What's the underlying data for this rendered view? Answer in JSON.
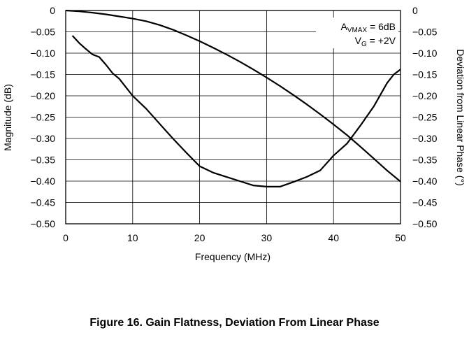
{
  "figure": {
    "caption": "Figure 16. Gain Flatness, Deviation From Linear Phase"
  },
  "chart_data": {
    "type": "line",
    "title": "",
    "xlabel": "Frequency (MHz)",
    "ylabel": "Magnitude (dB)",
    "y2label": "Deviation from Linear Phase (°)",
    "xlim": [
      0,
      50
    ],
    "ylim": [
      -0.5,
      0
    ],
    "y2lim": [
      -0.5,
      0
    ],
    "x_ticks": [
      "0",
      "10",
      "20",
      "30",
      "40",
      "50"
    ],
    "y_ticks": [
      "0",
      "−0.05",
      "−0.10",
      "−0.15",
      "−0.20",
      "−0.25",
      "−0.30",
      "−0.35",
      "−0.40",
      "−0.45",
      "−0.50"
    ],
    "y2_ticks": [
      "0",
      "−0.05",
      "−0.10",
      "−0.15",
      "−0.20",
      "−0.25",
      "−0.30",
      "−0.35",
      "−0.40",
      "−0.45",
      "−0.50"
    ],
    "grid": true,
    "annotation": {
      "a_main": "A",
      "a_sub": "VMAX",
      "a_rest": " = 6dB",
      "v_main": "V",
      "v_sub": "G",
      "v_rest": " = +2V"
    },
    "series": [
      {
        "axis": "left",
        "x": [
          0,
          2,
          4,
          6,
          8,
          10,
          12,
          14,
          16,
          18,
          20,
          22,
          24,
          26,
          28,
          30,
          32,
          34,
          36,
          38,
          40,
          42,
          44,
          46,
          48,
          50
        ],
        "values": [
          0,
          -0.002,
          -0.005,
          -0.009,
          -0.014,
          -0.019,
          -0.025,
          -0.034,
          -0.045,
          -0.058,
          -0.072,
          -0.087,
          -0.103,
          -0.12,
          -0.138,
          -0.157,
          -0.177,
          -0.198,
          -0.22,
          -0.243,
          -0.267,
          -0.292,
          -0.319,
          -0.347,
          -0.375,
          -0.401
        ]
      },
      {
        "axis": "right",
        "x": [
          1,
          2,
          3,
          4,
          5,
          6,
          7,
          8,
          9,
          10,
          12,
          14,
          16,
          18,
          20,
          22,
          24,
          26,
          28,
          30,
          32,
          34,
          36,
          38,
          40,
          42,
          44,
          46,
          48,
          49,
          50
        ],
        "values": [
          -0.059,
          -0.076,
          -0.09,
          -0.103,
          -0.109,
          -0.127,
          -0.147,
          -0.16,
          -0.18,
          -0.2,
          -0.23,
          -0.265,
          -0.3,
          -0.333,
          -0.365,
          -0.38,
          -0.39,
          -0.4,
          -0.41,
          -0.413,
          -0.413,
          -0.402,
          -0.39,
          -0.375,
          -0.34,
          -0.312,
          -0.27,
          -0.225,
          -0.17,
          -0.15,
          -0.138
        ]
      }
    ]
  }
}
